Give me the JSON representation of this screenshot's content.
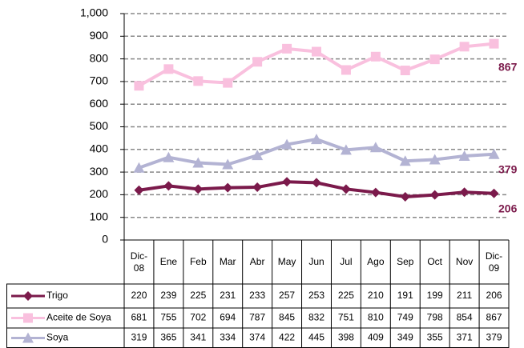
{
  "chart_data": {
    "type": "line",
    "categories": [
      "Dic-08",
      "Ene",
      "Feb",
      "Mar",
      "Abr",
      "May",
      "Jun",
      "Jul",
      "Ago",
      "Sep",
      "Oct",
      "Nov",
      "Dic-09"
    ],
    "series": [
      {
        "name": "Trigo",
        "color": "#7b1a4b",
        "marker": "diamond",
        "values": [
          220,
          239,
          225,
          231,
          233,
          257,
          253,
          225,
          210,
          191,
          199,
          211,
          206
        ]
      },
      {
        "name": "Aceite de Soya",
        "color": "#f9c0de",
        "marker": "square",
        "values": [
          681,
          755,
          702,
          694,
          787,
          845,
          832,
          751,
          810,
          749,
          798,
          854,
          867
        ]
      },
      {
        "name": "Soya",
        "color": "#b3b3d3",
        "marker": "triangle",
        "values": [
          319,
          365,
          341,
          334,
          374,
          422,
          445,
          398,
          409,
          349,
          355,
          371,
          379
        ]
      }
    ],
    "end_label_color": "#7b1a4b",
    "ylim": [
      0,
      1000
    ],
    "yticks": [
      0,
      100,
      200,
      300,
      400,
      500,
      600,
      700,
      800,
      900,
      {
        "value": 1000,
        "label": "1,000"
      }
    ],
    "grid": true
  }
}
